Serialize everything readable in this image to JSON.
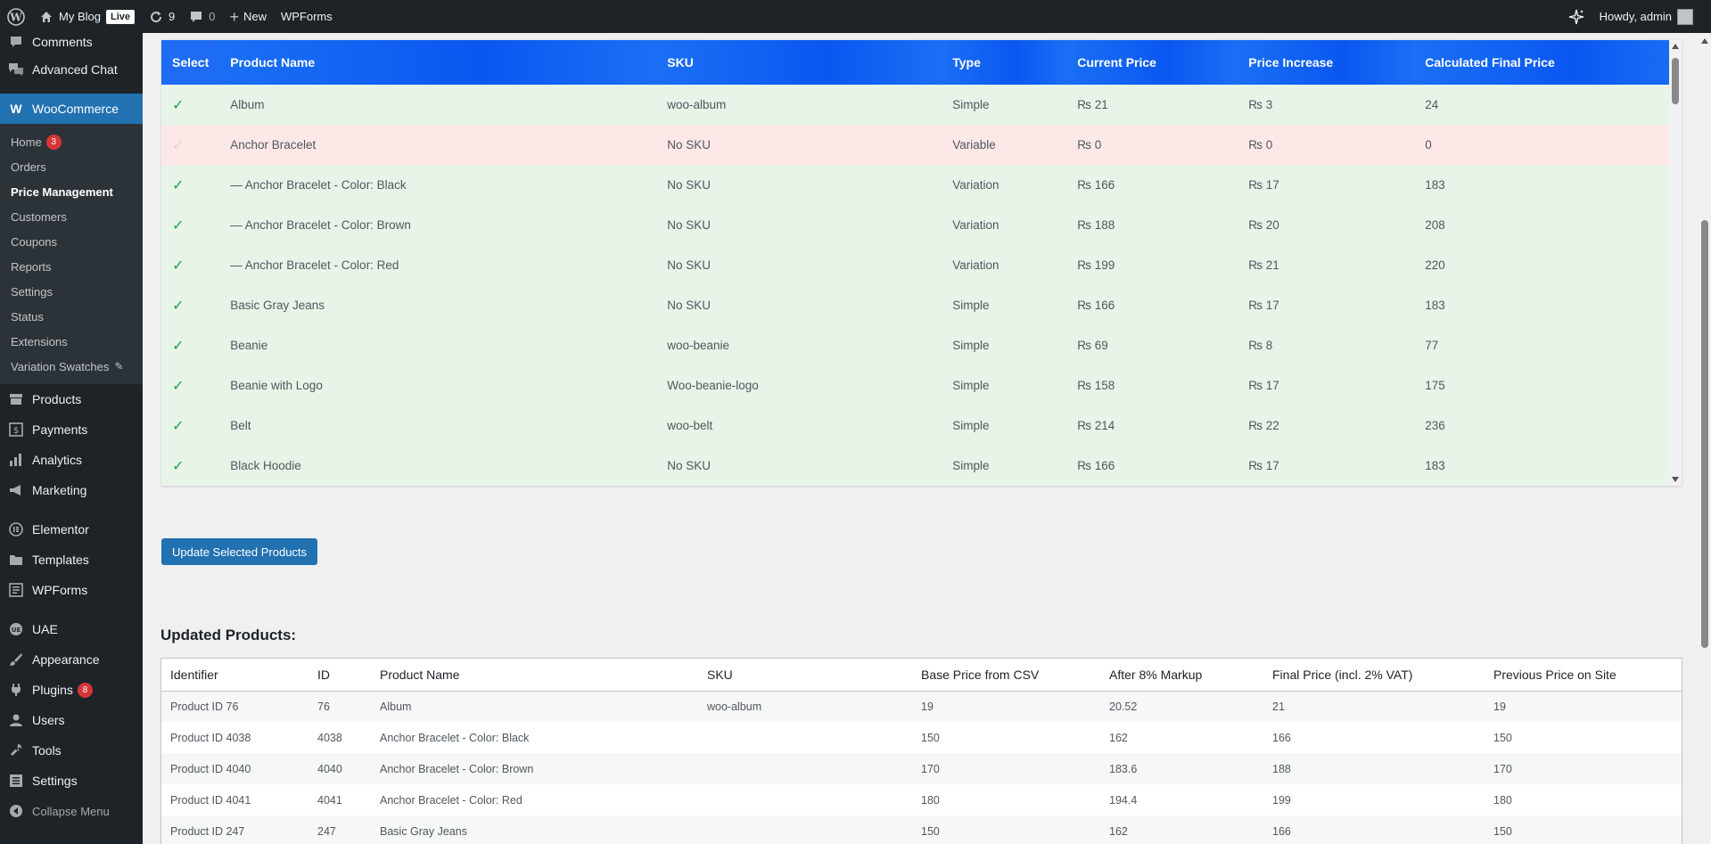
{
  "adminbar": {
    "site_name": "My Blog",
    "live_label": "Live",
    "updates_count": "9",
    "comments_count": "0",
    "new_label": "New",
    "wpforms_label": "WPForms",
    "howdy": "Howdy, admin"
  },
  "sidebar": {
    "comments": "Comments",
    "advanced_chat": "Advanced Chat",
    "woocommerce": "WooCommerce",
    "sub": {
      "home": "Home",
      "home_badge": "3",
      "orders": "Orders",
      "price_management": "Price Management",
      "customers": "Customers",
      "coupons": "Coupons",
      "reports": "Reports",
      "settings": "Settings",
      "status": "Status",
      "extensions": "Extensions",
      "variation_swatches": "Variation Swatches"
    },
    "products": "Products",
    "payments": "Payments",
    "analytics": "Analytics",
    "marketing": "Marketing",
    "elementor": "Elementor",
    "templates": "Templates",
    "wpforms": "WPForms",
    "uae": "UAE",
    "appearance": "Appearance",
    "plugins": "Plugins",
    "plugins_badge": "8",
    "users": "Users",
    "tools": "Tools",
    "settings": "Settings",
    "collapse": "Collapse Menu"
  },
  "top_table": {
    "headers": [
      "Select",
      "Product Name",
      "SKU",
      "Type",
      "Current Price",
      "Price Increase",
      "Calculated Final Price"
    ],
    "rows": [
      {
        "status": "ok",
        "name": "Album",
        "sku": "woo-album",
        "type": "Simple",
        "current": "₨ 21",
        "increase": "₨ 3",
        "final": "24"
      },
      {
        "status": "bad",
        "name": "Anchor Bracelet",
        "sku": "No SKU",
        "type": "Variable",
        "current": "₨ 0",
        "increase": "₨ 0",
        "final": "0"
      },
      {
        "status": "ok",
        "name": "— Anchor Bracelet - Color: Black",
        "sku": "No SKU",
        "type": "Variation",
        "current": "₨ 166",
        "increase": "₨ 17",
        "final": "183"
      },
      {
        "status": "ok",
        "name": "— Anchor Bracelet - Color: Brown",
        "sku": "No SKU",
        "type": "Variation",
        "current": "₨ 188",
        "increase": "₨ 20",
        "final": "208"
      },
      {
        "status": "ok",
        "name": "— Anchor Bracelet - Color: Red",
        "sku": "No SKU",
        "type": "Variation",
        "current": "₨ 199",
        "increase": "₨ 21",
        "final": "220"
      },
      {
        "status": "ok",
        "name": "Basic Gray Jeans",
        "sku": "No SKU",
        "type": "Simple",
        "current": "₨ 166",
        "increase": "₨ 17",
        "final": "183"
      },
      {
        "status": "ok",
        "name": "Beanie",
        "sku": "woo-beanie",
        "type": "Simple",
        "current": "₨ 69",
        "increase": "₨ 8",
        "final": "77"
      },
      {
        "status": "ok",
        "name": "Beanie with Logo",
        "sku": "Woo-beanie-logo",
        "type": "Simple",
        "current": "₨ 158",
        "increase": "₨ 17",
        "final": "175"
      },
      {
        "status": "ok",
        "name": "Belt",
        "sku": "woo-belt",
        "type": "Simple",
        "current": "₨ 214",
        "increase": "₨ 22",
        "final": "236"
      },
      {
        "status": "ok",
        "name": "Black Hoodie",
        "sku": "No SKU",
        "type": "Simple",
        "current": "₨ 166",
        "increase": "₨ 17",
        "final": "183"
      }
    ]
  },
  "update_button": "Update Selected Products",
  "updated_section_title": "Updated Products:",
  "bottom_table": {
    "headers": [
      "Identifier",
      "ID",
      "Product Name",
      "SKU",
      "Base Price from CSV",
      "After 8% Markup",
      "Final Price (incl. 2% VAT)",
      "Previous Price on Site"
    ],
    "rows": [
      [
        "Product ID 76",
        "76",
        "Album",
        "woo-album",
        "19",
        "20.52",
        "21",
        "19"
      ],
      [
        "Product ID 4038",
        "4038",
        "Anchor Bracelet - Color: Black",
        "",
        "150",
        "162",
        "166",
        "150"
      ],
      [
        "Product ID 4040",
        "4040",
        "Anchor Bracelet - Color: Brown",
        "",
        "170",
        "183.6",
        "188",
        "170"
      ],
      [
        "Product ID 4041",
        "4041",
        "Anchor Bracelet - Color: Red",
        "",
        "180",
        "194.4",
        "199",
        "180"
      ],
      [
        "Product ID 247",
        "247",
        "Basic Gray Jeans",
        "",
        "150",
        "162",
        "166",
        "150"
      ]
    ]
  },
  "colors": {
    "accent": "#2271b1",
    "header_blue": "#0a57f0",
    "row_ok": "#e8f4e8",
    "row_bad": "#fde8e8",
    "check": "#1aa34a"
  }
}
